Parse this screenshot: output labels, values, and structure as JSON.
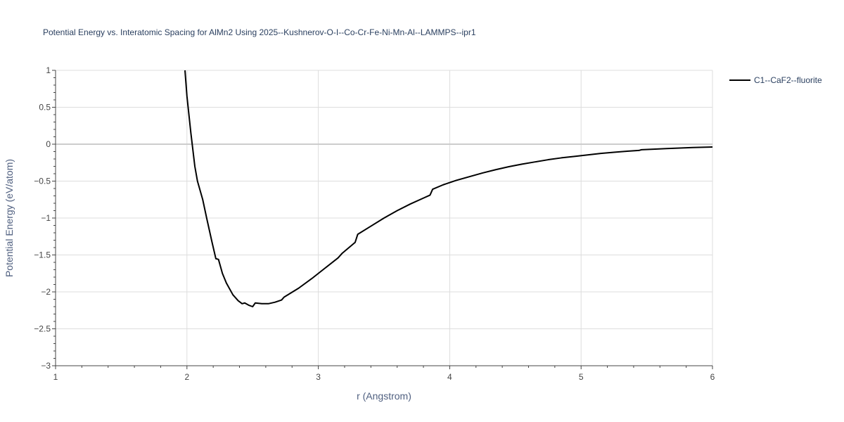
{
  "chart_data": {
    "type": "line",
    "title": "Potential Energy vs. Interatomic Spacing for AlMn2 Using 2025--Kushnerov-O-I--Co-Cr-Fe-Ni-Mn-Al--LAMMPS--ipr1",
    "xlabel": "r (Angstrom)",
    "ylabel": "Potential Energy (eV/atom)",
    "xlim": [
      1,
      6
    ],
    "ylim": [
      -3,
      1
    ],
    "xticks": [
      1,
      2,
      3,
      4,
      5,
      6
    ],
    "xtick_labels": [
      "1",
      "2",
      "3",
      "4",
      "5",
      "6"
    ],
    "yticks": [
      1,
      0.5,
      0,
      -0.5,
      -1,
      -1.5,
      -2,
      -2.5,
      -3
    ],
    "ytick_labels": [
      "1",
      "0.5",
      "0",
      "−0.5",
      "−1",
      "−1.5",
      "−2",
      "−2.5",
      "−3"
    ],
    "grid": true,
    "legend_position": "top-right-outside",
    "series": [
      {
        "name": "C1--CaF2--fluorite",
        "color": "#000000",
        "x": [
          1.985,
          2.0,
          2.03,
          2.06,
          2.08,
          2.12,
          2.15,
          2.19,
          2.22,
          2.24,
          2.27,
          2.3,
          2.35,
          2.39,
          2.42,
          2.44,
          2.47,
          2.5,
          2.52,
          2.57,
          2.62,
          2.67,
          2.72,
          2.74,
          2.85,
          2.95,
          3.05,
          3.15,
          3.18,
          3.28,
          3.3,
          3.4,
          3.5,
          3.6,
          3.7,
          3.8,
          3.85,
          3.87,
          3.95,
          4.05,
          4.15,
          4.25,
          4.35,
          4.45,
          4.55,
          4.65,
          4.75,
          4.85,
          4.95,
          5.05,
          5.15,
          5.25,
          5.35,
          5.44,
          5.46,
          5.55,
          5.65,
          5.75,
          5.85,
          6.0
        ],
        "y": [
          1.0,
          0.65,
          0.15,
          -0.3,
          -0.5,
          -0.75,
          -1.0,
          -1.32,
          -1.55,
          -1.56,
          -1.75,
          -1.88,
          -2.04,
          -2.12,
          -2.16,
          -2.15,
          -2.18,
          -2.2,
          -2.15,
          -2.16,
          -2.16,
          -2.14,
          -2.11,
          -2.07,
          -1.95,
          -1.82,
          -1.68,
          -1.54,
          -1.48,
          -1.33,
          -1.22,
          -1.11,
          -1.0,
          -0.9,
          -0.81,
          -0.73,
          -0.69,
          -0.61,
          -0.55,
          -0.49,
          -0.44,
          -0.39,
          -0.345,
          -0.305,
          -0.27,
          -0.24,
          -0.21,
          -0.185,
          -0.165,
          -0.145,
          -0.125,
          -0.11,
          -0.095,
          -0.085,
          -0.075,
          -0.068,
          -0.06,
          -0.052,
          -0.045,
          -0.038
        ]
      }
    ]
  }
}
